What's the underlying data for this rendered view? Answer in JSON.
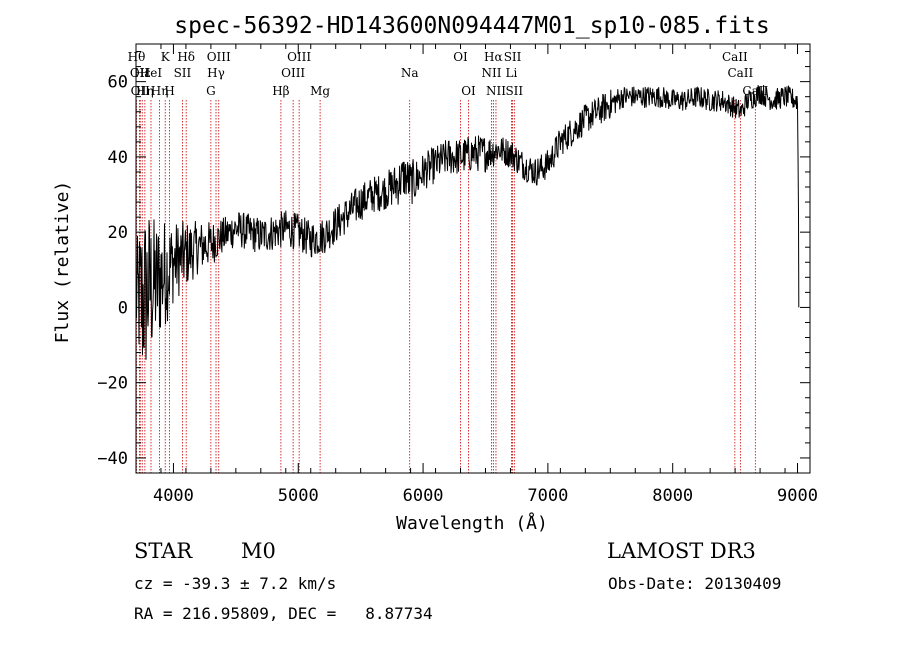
{
  "chart_data": {
    "type": "line",
    "title": "spec-56392-HD143600N094447M01_sp10-085.fits",
    "xlabel": "Wavelength (Å)",
    "ylabel": "Flux (relative)",
    "xlim": [
      3700,
      9100
    ],
    "ylim": [
      -44,
      70
    ],
    "xticks": [
      4000,
      5000,
      6000,
      7000,
      8000,
      9000
    ],
    "yticks": [
      -40,
      -20,
      0,
      20,
      40,
      60
    ],
    "series": [
      {
        "name": "flux",
        "anchors_x": [
          3700,
          3750,
          3800,
          3850,
          3900,
          3950,
          4000,
          4100,
          4200,
          4300,
          4400,
          4500,
          4600,
          4700,
          4800,
          4900,
          5000,
          5100,
          5200,
          5300,
          5400,
          5500,
          5600,
          5700,
          5800,
          5850,
          5900,
          5950,
          6000,
          6100,
          6200,
          6300,
          6400,
          6500,
          6600,
          6700,
          6800,
          6900,
          7000,
          7100,
          7200,
          7300,
          7400,
          7500,
          7600,
          7700,
          7800,
          7900,
          8000,
          8100,
          8200,
          8300,
          8400,
          8500,
          8550,
          8600,
          8700,
          8800,
          8900,
          9000,
          9010
        ],
        "anchors_y": [
          3,
          2,
          5,
          6,
          8,
          10,
          12,
          14,
          16,
          17,
          19,
          21,
          20,
          19,
          20,
          21,
          20,
          18,
          19,
          22,
          25,
          28,
          30,
          31,
          33,
          35,
          33,
          34,
          36,
          38,
          40,
          40,
          41,
          41,
          42,
          41,
          38,
          36,
          38,
          44,
          47,
          50,
          52,
          54,
          56,
          56,
          56,
          56,
          55,
          55,
          56,
          55,
          55,
          53,
          52,
          55,
          57,
          55,
          56,
          55,
          18
        ],
        "noise": [
          14,
          24,
          22,
          18,
          16,
          14,
          11,
          9,
          7,
          6,
          5,
          5,
          5,
          5,
          5,
          5,
          5,
          5,
          5,
          5,
          5,
          5,
          5,
          5,
          6,
          6,
          6,
          6,
          5,
          5,
          5,
          5,
          5,
          5,
          4,
          4,
          4,
          4,
          4,
          4,
          4,
          4,
          4,
          4,
          3,
          3,
          3,
          3,
          3,
          3,
          3,
          3,
          3,
          3,
          3,
          3,
          3,
          3,
          3,
          3,
          3
        ]
      }
    ],
    "spectral_lines": [
      {
        "wl": 3704,
        "row": 0,
        "label": "Hθ"
      },
      {
        "wl": 3728,
        "row": 1,
        "label": "OII"
      },
      {
        "wl": 3734,
        "row": 2,
        "label": "OII"
      },
      {
        "wl": 3750,
        "row": 1,
        "label": "Hε"
      },
      {
        "wl": 3771,
        "row": 2,
        "label": "Hη"
      },
      {
        "wl": 3820,
        "row": 1,
        "label": "HeI"
      },
      {
        "wl": 3889,
        "row": 2,
        "label": "Hη"
      },
      {
        "wl": 3934,
        "row": 0,
        "label": "K"
      },
      {
        "wl": 3969,
        "row": 2,
        "label": "H"
      },
      {
        "wl": 4072,
        "row": 1,
        "label": "SII"
      },
      {
        "wl": 4102,
        "row": 0,
        "label": "Hδ"
      },
      {
        "wl": 4300,
        "row": 2,
        "label": "G"
      },
      {
        "wl": 4341,
        "row": 1,
        "label": "Hγ"
      },
      {
        "wl": 4363,
        "row": 0,
        "label": "OIII"
      },
      {
        "wl": 4861,
        "row": 2,
        "label": "Hβ"
      },
      {
        "wl": 4959,
        "row": 1,
        "label": "OIII"
      },
      {
        "wl": 5007,
        "row": 0,
        "label": "OIII"
      },
      {
        "wl": 5175,
        "row": 2,
        "label": "Mg"
      },
      {
        "wl": 5893,
        "row": 1,
        "label": "Na"
      },
      {
        "wl": 6300,
        "row": 0,
        "label": "OI"
      },
      {
        "wl": 6364,
        "row": 2,
        "label": "OI"
      },
      {
        "wl": 6548,
        "row": 1,
        "label": "NII"
      },
      {
        "wl": 6563,
        "row": 0,
        "label": "Hα"
      },
      {
        "wl": 6584,
        "row": 2,
        "label": "NII"
      },
      {
        "wl": 6708,
        "row": 1,
        "label": "Li"
      },
      {
        "wl": 6717,
        "row": 0,
        "label": "SII"
      },
      {
        "wl": 6731,
        "row": 2,
        "label": "SII"
      },
      {
        "wl": 8498,
        "row": 0,
        "label": "CaII"
      },
      {
        "wl": 8542,
        "row": 1,
        "label": "CaII"
      },
      {
        "wl": 8662,
        "row": 2,
        "label": "CaII"
      }
    ]
  },
  "info": {
    "class_label": "STAR",
    "subclass": "M0",
    "survey": "LAMOST DR3",
    "cz": "cz = -39.3 ± 7.2 km/s",
    "obs_date": "Obs-Date: 20130409",
    "coords": "RA = 216.95809, DEC =   8.87734"
  },
  "colors": {
    "axis": "#000000",
    "line_marker": "#cc0000",
    "spectrum": "#000000"
  }
}
